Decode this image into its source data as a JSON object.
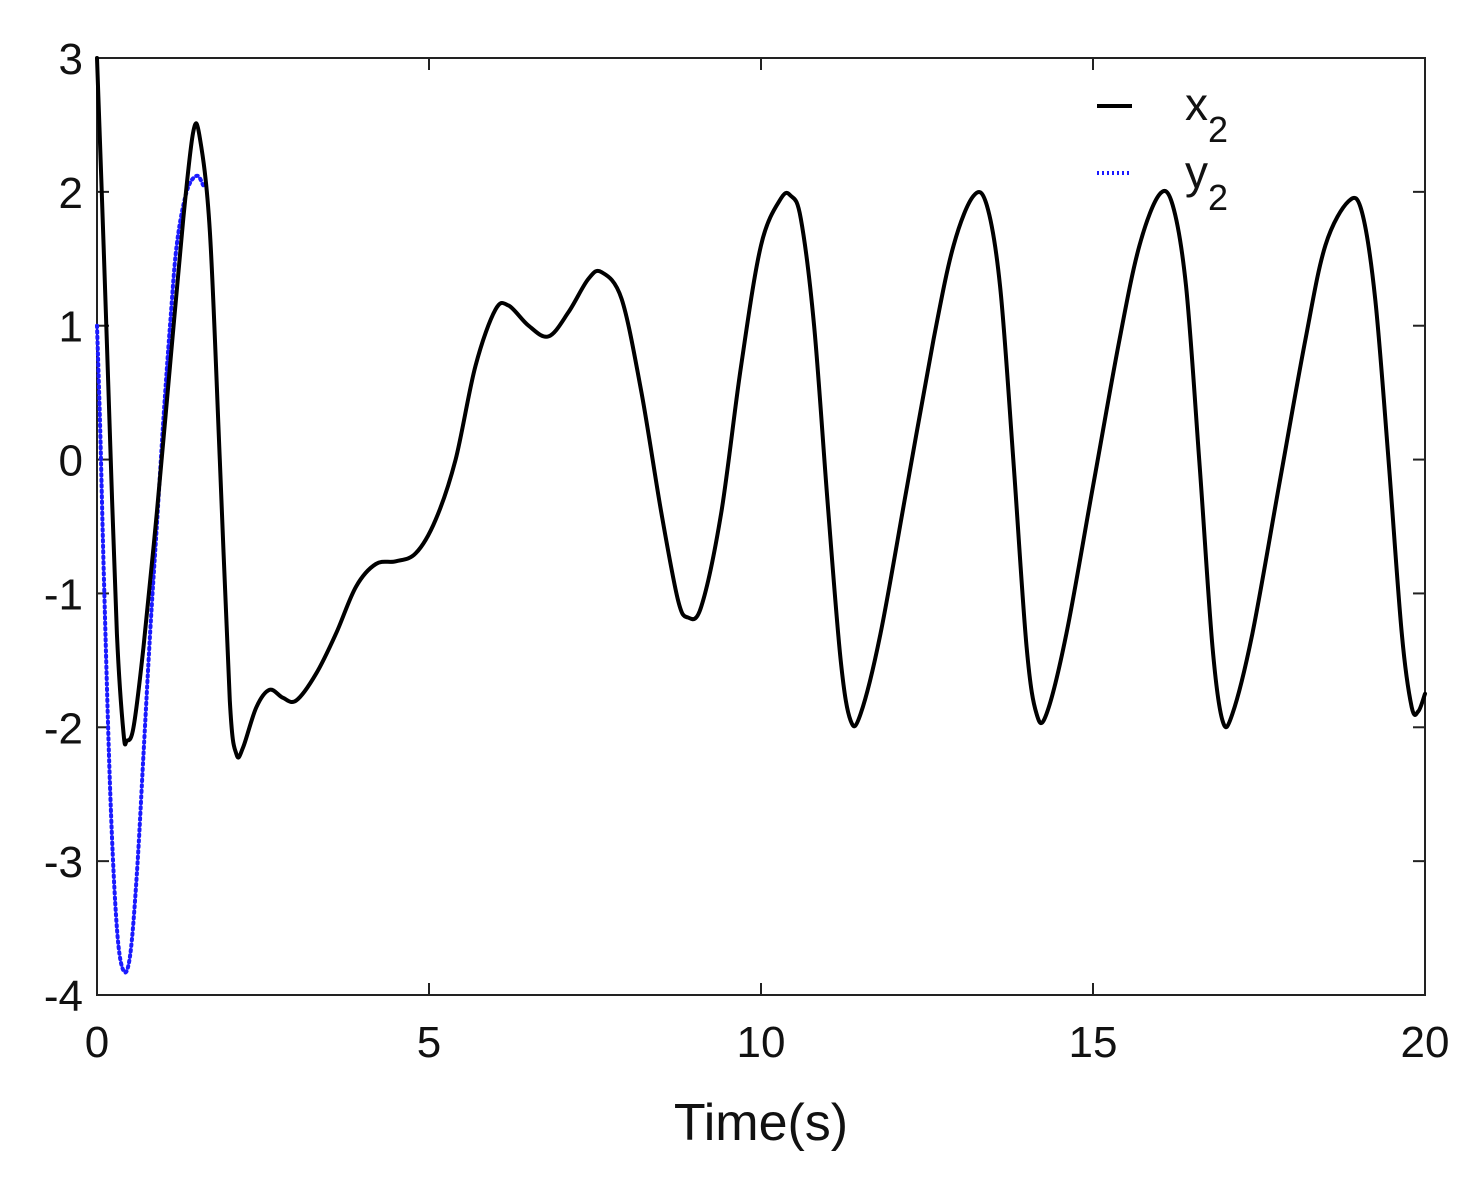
{
  "chart_data": {
    "type": "line",
    "title": "",
    "xlabel": "Time(s)",
    "ylabel": "",
    "xlim": [
      0,
      20
    ],
    "ylim": [
      -4,
      3
    ],
    "xticks": [
      0,
      5,
      10,
      15,
      20
    ],
    "yticks": [
      -4,
      -3,
      -2,
      -1,
      0,
      1,
      2,
      3
    ],
    "xtick_labels": [
      "0",
      "5",
      "10",
      "15",
      "20"
    ],
    "ytick_labels": [
      "-4",
      "-3",
      "-2",
      "-1",
      "0",
      "1",
      "2",
      "3"
    ],
    "grid": false,
    "legend": {
      "position": "top-right",
      "entries": [
        {
          "name": "x",
          "sub": "2",
          "color": "#000000",
          "style": "solid"
        },
        {
          "name": "y",
          "sub": "2",
          "color": "#1a1aff",
          "style": "dotted"
        }
      ]
    },
    "series": [
      {
        "name": "x2",
        "color": "#000000",
        "style": "solid",
        "points": [
          [
            0,
            3
          ],
          [
            0.1,
            1.6
          ],
          [
            0.2,
            0.1
          ],
          [
            0.3,
            -1.3
          ],
          [
            0.4,
            -2.05
          ],
          [
            0.45,
            -2.1
          ],
          [
            0.55,
            -2.0
          ],
          [
            0.7,
            -1.4
          ],
          [
            0.9,
            -0.4
          ],
          [
            1.1,
            0.7
          ],
          [
            1.3,
            1.8
          ],
          [
            1.45,
            2.45
          ],
          [
            1.55,
            2.4
          ],
          [
            1.7,
            1.7
          ],
          [
            1.85,
            0.0
          ],
          [
            2.0,
            -1.8
          ],
          [
            2.1,
            -2.2
          ],
          [
            2.2,
            -2.15
          ],
          [
            2.4,
            -1.85
          ],
          [
            2.6,
            -1.72
          ],
          [
            2.8,
            -1.78
          ],
          [
            3.0,
            -1.8
          ],
          [
            3.3,
            -1.6
          ],
          [
            3.6,
            -1.3
          ],
          [
            3.9,
            -0.95
          ],
          [
            4.2,
            -0.78
          ],
          [
            4.5,
            -0.76
          ],
          [
            4.8,
            -0.7
          ],
          [
            5.1,
            -0.45
          ],
          [
            5.4,
            0.0
          ],
          [
            5.7,
            0.7
          ],
          [
            6.0,
            1.12
          ],
          [
            6.2,
            1.15
          ],
          [
            6.5,
            1.0
          ],
          [
            6.8,
            0.92
          ],
          [
            7.1,
            1.1
          ],
          [
            7.4,
            1.35
          ],
          [
            7.6,
            1.4
          ],
          [
            7.9,
            1.2
          ],
          [
            8.2,
            0.5
          ],
          [
            8.5,
            -0.4
          ],
          [
            8.75,
            -1.05
          ],
          [
            8.9,
            -1.18
          ],
          [
            9.1,
            -1.1
          ],
          [
            9.4,
            -0.4
          ],
          [
            9.7,
            0.7
          ],
          [
            10.0,
            1.6
          ],
          [
            10.3,
            1.95
          ],
          [
            10.45,
            1.97
          ],
          [
            10.6,
            1.8
          ],
          [
            10.8,
            1.0
          ],
          [
            11.0,
            -0.3
          ],
          [
            11.2,
            -1.5
          ],
          [
            11.35,
            -1.95
          ],
          [
            11.5,
            -1.9
          ],
          [
            11.8,
            -1.3
          ],
          [
            12.2,
            -0.2
          ],
          [
            12.6,
            0.9
          ],
          [
            12.9,
            1.6
          ],
          [
            13.2,
            1.97
          ],
          [
            13.4,
            1.9
          ],
          [
            13.6,
            1.3
          ],
          [
            13.8,
            0.0
          ],
          [
            14.0,
            -1.4
          ],
          [
            14.15,
            -1.9
          ],
          [
            14.3,
            -1.9
          ],
          [
            14.6,
            -1.3
          ],
          [
            15.0,
            -0.2
          ],
          [
            15.4,
            0.9
          ],
          [
            15.7,
            1.6
          ],
          [
            16.0,
            1.98
          ],
          [
            16.2,
            1.9
          ],
          [
            16.4,
            1.3
          ],
          [
            16.6,
            0.0
          ],
          [
            16.8,
            -1.4
          ],
          [
            16.95,
            -1.95
          ],
          [
            17.1,
            -1.9
          ],
          [
            17.4,
            -1.3
          ],
          [
            17.8,
            -0.2
          ],
          [
            18.2,
            0.9
          ],
          [
            18.5,
            1.6
          ],
          [
            18.85,
            1.93
          ],
          [
            19.05,
            1.85
          ],
          [
            19.25,
            1.2
          ],
          [
            19.45,
            0.0
          ],
          [
            19.65,
            -1.3
          ],
          [
            19.8,
            -1.85
          ],
          [
            19.9,
            -1.88
          ],
          [
            20.0,
            -1.75
          ]
        ]
      },
      {
        "name": "y2",
        "color": "#1a1aff",
        "style": "dotted",
        "points": [
          [
            0,
            1.0
          ],
          [
            0.05,
            0.2
          ],
          [
            0.1,
            -0.8
          ],
          [
            0.2,
            -2.5
          ],
          [
            0.3,
            -3.5
          ],
          [
            0.4,
            -3.82
          ],
          [
            0.5,
            -3.7
          ],
          [
            0.6,
            -3.1
          ],
          [
            0.7,
            -2.2
          ],
          [
            0.8,
            -1.3
          ],
          [
            0.9,
            -0.5
          ],
          [
            1.0,
            0.3
          ],
          [
            1.1,
            1.0
          ],
          [
            1.2,
            1.6
          ],
          [
            1.35,
            2.0
          ],
          [
            1.5,
            2.12
          ],
          [
            1.6,
            2.05
          ]
        ]
      }
    ]
  }
}
